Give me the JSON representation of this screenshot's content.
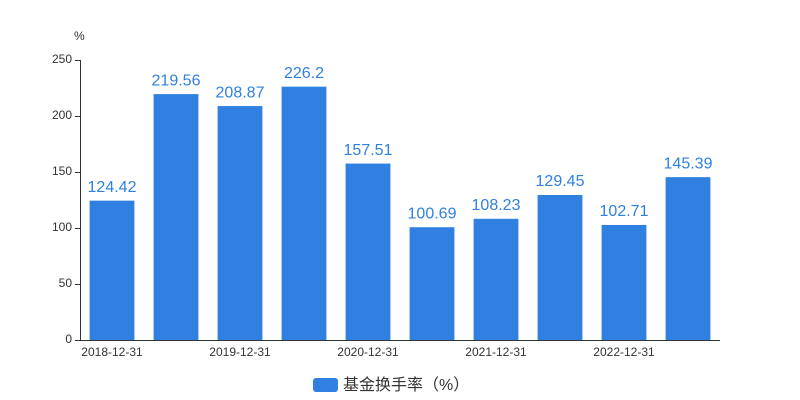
{
  "chart_data": {
    "type": "bar",
    "y_axis_label": "%",
    "categories": [
      "2018-12-31",
      null,
      "2019-12-31",
      null,
      "2020-12-31",
      null,
      "2021-12-31",
      null,
      "2022-12-31",
      null
    ],
    "series": [
      {
        "name": "基金换手率（%）",
        "color": "#2f80e0",
        "values": [
          124.42,
          219.56,
          208.87,
          226.2,
          157.51,
          100.69,
          108.23,
          129.45,
          102.71,
          145.39
        ]
      }
    ],
    "ylim": [
      0,
      250
    ],
    "yticks": [
      0,
      50,
      100,
      150,
      200,
      250
    ],
    "grid": false
  }
}
